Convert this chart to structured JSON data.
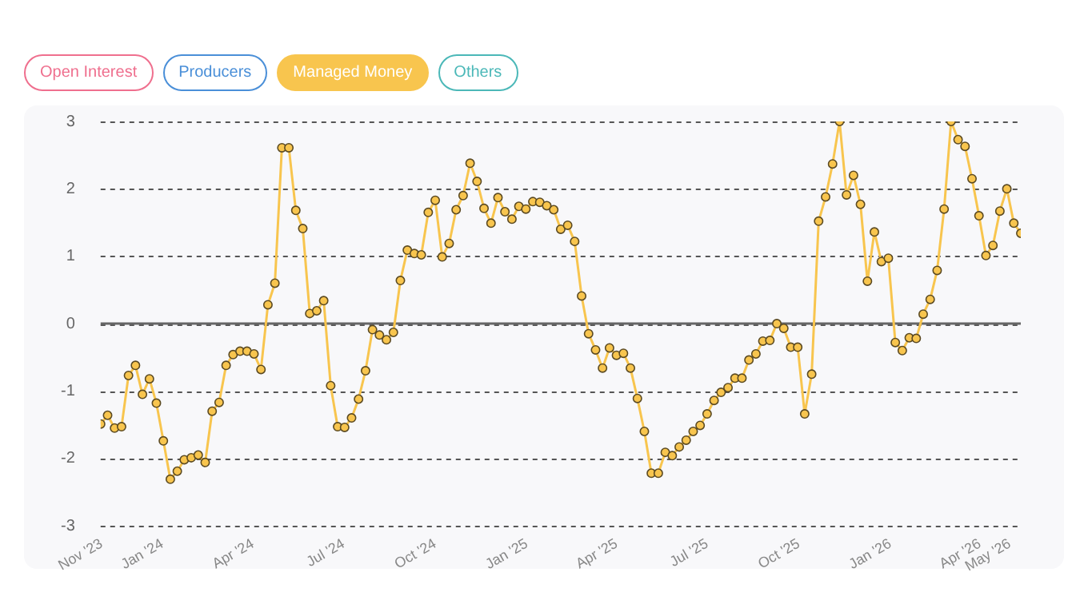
{
  "chart_data": {
    "type": "line",
    "legend": "top left",
    "grid": "y",
    "marker": "circle",
    "line_style": "solid",
    "x": [
      "2023-10-31",
      "2023-11-07",
      "2023-11-14",
      "2023-11-21",
      "2023-11-28",
      "2023-12-05",
      "2023-12-12",
      "2023-12-19",
      "2023-12-26",
      "2024-01-02",
      "2024-01-09",
      "2024-01-16",
      "2024-01-23",
      "2024-01-30",
      "2024-02-06",
      "2024-02-13",
      "2024-02-20",
      "2024-02-27",
      "2024-03-05",
      "2024-03-12",
      "2024-03-19",
      "2024-03-26",
      "2024-04-02",
      "2024-04-09",
      "2024-04-16",
      "2024-04-23",
      "2024-04-30",
      "2024-05-07",
      "2024-05-14",
      "2024-05-21",
      "2024-05-28",
      "2024-06-04",
      "2024-06-11",
      "2024-06-18",
      "2024-06-25",
      "2024-07-02",
      "2024-07-09",
      "2024-07-16",
      "2024-07-23",
      "2024-07-30",
      "2024-08-06",
      "2024-08-13",
      "2024-08-20",
      "2024-08-27",
      "2024-09-03",
      "2024-09-10",
      "2024-09-17",
      "2024-09-24",
      "2024-10-01",
      "2024-10-08",
      "2024-10-15",
      "2024-10-22",
      "2024-10-29",
      "2024-11-05",
      "2024-11-12",
      "2024-11-19",
      "2024-11-26",
      "2024-12-03",
      "2024-12-10",
      "2024-12-17",
      "2024-12-24",
      "2024-12-31",
      "2025-01-07",
      "2025-01-14",
      "2025-01-21",
      "2025-01-28",
      "2025-02-04",
      "2025-02-11",
      "2025-02-18",
      "2025-02-25",
      "2025-03-04",
      "2025-03-11",
      "2025-03-18",
      "2025-03-25",
      "2025-04-01",
      "2025-04-08",
      "2025-04-15",
      "2025-04-22",
      "2025-04-29",
      "2025-05-06",
      "2025-05-13",
      "2025-05-20",
      "2025-05-27",
      "2025-06-03",
      "2025-06-10",
      "2025-06-17",
      "2025-06-24",
      "2025-07-01",
      "2025-07-08",
      "2025-07-15",
      "2025-07-22",
      "2025-07-29",
      "2025-08-05",
      "2025-08-12",
      "2025-08-19",
      "2025-08-26",
      "2025-09-02",
      "2025-09-09",
      "2025-09-16",
      "2025-09-23",
      "2025-09-30",
      "2025-10-07",
      "2025-10-14",
      "2025-10-21",
      "2025-10-28",
      "2025-11-04",
      "2025-11-11",
      "2025-11-18",
      "2025-11-25",
      "2025-12-02",
      "2025-12-09",
      "2025-12-16",
      "2025-12-23",
      "2025-12-30",
      "2026-01-06",
      "2026-01-13",
      "2026-01-20",
      "2026-01-27",
      "2026-02-03",
      "2026-02-10",
      "2026-02-17",
      "2026-02-24",
      "2026-03-03",
      "2026-03-10",
      "2026-03-17",
      "2026-03-24",
      "2026-03-31",
      "2026-04-07",
      "2026-04-14",
      "2026-04-21",
      "2026-04-28",
      "2026-05-05",
      "2026-05-12"
    ],
    "xlim": [
      "2023-10-31",
      "2026-05-12"
    ],
    "xticks": [
      {
        "value": "2023-11-01",
        "label": "Nov '23"
      },
      {
        "value": "2024-01-01",
        "label": "Jan '24"
      },
      {
        "value": "2024-04-01",
        "label": "Apr '24"
      },
      {
        "value": "2024-07-01",
        "label": "Jul '24"
      },
      {
        "value": "2024-10-01",
        "label": "Oct '24"
      },
      {
        "value": "2025-01-01",
        "label": "Jan '25"
      },
      {
        "value": "2025-04-01",
        "label": "Apr '25"
      },
      {
        "value": "2025-07-01",
        "label": "Jul '25"
      },
      {
        "value": "2025-10-01",
        "label": "Oct '25"
      },
      {
        "value": "2026-01-01",
        "label": "Jan '26"
      },
      {
        "value": "2026-04-01",
        "label": "Apr '26"
      },
      {
        "value": "2026-05-01",
        "label": "May '26"
      }
    ],
    "ylim": [
      -3,
      3
    ],
    "yticks": [
      -3,
      -2,
      -1,
      0,
      1,
      2,
      3
    ],
    "ref_lines": [
      {
        "axis": "y",
        "value": 0,
        "color": "#666666",
        "line_style": "solid"
      }
    ],
    "series": [
      {
        "name": "Open Interest",
        "color": "#ef6f8e",
        "values": [
          null,
          null,
          null,
          null,
          null,
          null,
          null,
          null,
          null,
          null,
          null,
          null,
          null,
          null,
          null,
          null,
          null,
          null,
          null,
          null,
          null,
          null,
          null,
          null,
          null,
          null,
          null,
          null,
          null,
          null,
          null,
          null,
          null,
          null,
          null,
          null,
          null,
          null,
          null,
          null,
          null,
          null,
          null,
          null,
          null,
          null,
          null,
          null,
          null,
          null,
          null,
          null,
          null,
          null,
          null,
          null,
          null,
          null,
          null,
          null,
          null,
          null,
          null,
          null,
          null,
          null,
          null,
          null,
          null,
          null,
          null,
          null,
          null,
          null,
          null,
          null,
          null,
          null,
          null,
          null,
          null,
          null,
          null,
          null,
          null,
          null,
          null,
          null,
          null,
          null,
          null,
          null,
          null,
          null,
          null,
          null,
          null,
          null,
          null,
          null,
          null,
          null,
          null,
          null,
          null,
          null,
          null,
          null,
          null,
          null,
          null,
          null,
          null,
          null,
          null,
          null,
          null,
          null,
          null,
          null,
          null,
          null,
          null,
          null,
          null,
          null,
          null,
          null,
          null,
          null,
          null,
          null,
          null
        ]
      },
      {
        "name": "Producers",
        "color": "#4a8fd8",
        "values": [
          null,
          null,
          null,
          null,
          null,
          null,
          null,
          null,
          null,
          null,
          null,
          null,
          null,
          null,
          null,
          null,
          null,
          null,
          null,
          null,
          null,
          null,
          null,
          null,
          null,
          null,
          null,
          null,
          null,
          null,
          null,
          null,
          null,
          null,
          null,
          null,
          null,
          null,
          null,
          null,
          null,
          null,
          null,
          null,
          null,
          null,
          null,
          null,
          null,
          null,
          null,
          null,
          null,
          null,
          null,
          null,
          null,
          null,
          null,
          null,
          null,
          null,
          null,
          null,
          null,
          null,
          null,
          null,
          null,
          null,
          null,
          null,
          null,
          null,
          null,
          null,
          null,
          null,
          null,
          null,
          null,
          null,
          null,
          null,
          null,
          null,
          null,
          null,
          null,
          null,
          null,
          null,
          null,
          null,
          null,
          null,
          null,
          null,
          null,
          null,
          null,
          null,
          null,
          null,
          null,
          null,
          null,
          null,
          null,
          null,
          null,
          null,
          null,
          null,
          null,
          null,
          null,
          null,
          null,
          null,
          null,
          null,
          null,
          null,
          null,
          null,
          null,
          null,
          null,
          null,
          null,
          null,
          null
        ]
      },
      {
        "name": "Managed Money",
        "color": "#f8c54e",
        "values": [
          -1.49,
          -1.36,
          -1.55,
          -1.53,
          -0.77,
          -0.62,
          -1.05,
          -0.82,
          -1.18,
          -1.74,
          -2.31,
          -2.19,
          -2.02,
          -1.99,
          -1.95,
          -2.06,
          -1.3,
          -1.17,
          -0.62,
          -0.46,
          -0.41,
          -0.41,
          -0.45,
          -0.68,
          0.28,
          0.6,
          2.61,
          2.61,
          1.68,
          1.41,
          0.15,
          0.19,
          0.34,
          -0.92,
          -1.53,
          -1.54,
          -1.4,
          -1.12,
          -0.7,
          -0.09,
          -0.17,
          -0.24,
          -0.13,
          0.64,
          1.09,
          1.04,
          1.02,
          1.65,
          1.83,
          0.99,
          1.19,
          1.69,
          1.9,
          2.38,
          2.11,
          1.71,
          1.49,
          1.87,
          1.66,
          1.55,
          1.74,
          1.7,
          1.81,
          1.8,
          1.75,
          1.69,
          1.4,
          1.46,
          1.22,
          0.41,
          -0.15,
          -0.39,
          -0.66,
          -0.36,
          -0.47,
          -0.44,
          -0.66,
          -1.11,
          -1.6,
          -2.22,
          -2.22,
          -1.91,
          -1.96,
          -1.83,
          -1.73,
          -1.6,
          -1.51,
          -1.34,
          -1.14,
          -1.02,
          -0.95,
          -0.81,
          -0.81,
          -0.54,
          -0.45,
          -0.26,
          -0.25,
          0.0,
          -0.07,
          -0.35,
          -0.35,
          -1.34,
          -0.75,
          1.52,
          1.88,
          2.37,
          3.0,
          1.91,
          2.2,
          1.77,
          0.63,
          1.36,
          0.92,
          0.97,
          -0.28,
          -0.4,
          -0.21,
          -0.22,
          0.14,
          0.36,
          0.79,
          1.7,
          3.0,
          2.73,
          2.63,
          2.15,
          1.6,
          1.01,
          1.16,
          1.67,
          2.0,
          1.49,
          1.34
        ]
      },
      {
        "name": "Others",
        "color": "#4bb8b8",
        "values": [
          null,
          null,
          null,
          null,
          null,
          null,
          null,
          null,
          null,
          null,
          null,
          null,
          null,
          null,
          null,
          null,
          null,
          null,
          null,
          null,
          null,
          null,
          null,
          null,
          null,
          null,
          null,
          null,
          null,
          null,
          null,
          null,
          null,
          null,
          null,
          null,
          null,
          null,
          null,
          null,
          null,
          null,
          null,
          null,
          null,
          null,
          null,
          null,
          null,
          null,
          null,
          null,
          null,
          null,
          null,
          null,
          null,
          null,
          null,
          null,
          null,
          null,
          null,
          null,
          null,
          null,
          null,
          null,
          null,
          null,
          null,
          null,
          null,
          null,
          null,
          null,
          null,
          null,
          null,
          null,
          null,
          null,
          null,
          null,
          null,
          null,
          null,
          null,
          null,
          null,
          null,
          null,
          null,
          null,
          null,
          null,
          null,
          null,
          null,
          null,
          null,
          null,
          null,
          null,
          null,
          null,
          null,
          null,
          null,
          null,
          null,
          null,
          null,
          null,
          null,
          null,
          null,
          null,
          null,
          null,
          null,
          null,
          null,
          null,
          null,
          null,
          null,
          null,
          null,
          null,
          null,
          null,
          null
        ]
      }
    ]
  }
}
